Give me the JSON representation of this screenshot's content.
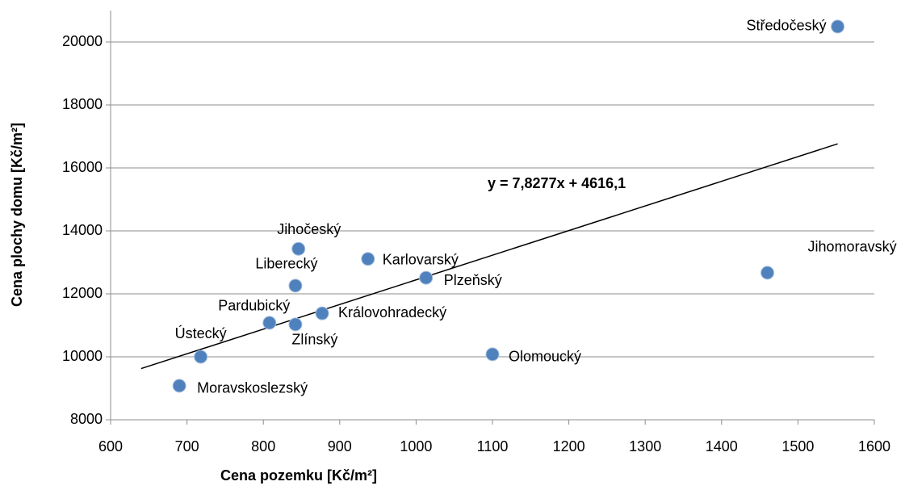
{
  "chart_data": {
    "type": "scatter",
    "x_label": "Cena pozemku [Kč/m²]",
    "y_label": "Cena plochy domu [Kč/m²]",
    "point_labels": [
      "Středočeský",
      "Jihomoravský",
      "Jihočeský",
      "Karlovarský",
      "Liberecký",
      "Plzeňský",
      "Královohradecký",
      "Pardubický",
      "Zlínský",
      "Ústecký",
      "Olomoucký",
      "Moravskoslezský"
    ],
    "x": [
      1552,
      1460,
      846,
      937,
      842,
      1013,
      877,
      808,
      842,
      718,
      1100,
      690
    ],
    "values": [
      20490,
      12670,
      13430,
      13110,
      12260,
      12510,
      11380,
      11080,
      11030,
      10000,
      10080,
      9080
    ],
    "color": "#4f81bd",
    "xlim": [
      600,
      1600
    ],
    "xticks": [
      600,
      700,
      800,
      900,
      1000,
      1100,
      1200,
      1300,
      1400,
      1500,
      1600
    ],
    "ylim": [
      8000,
      21000
    ],
    "yticks": [
      8000,
      10000,
      12000,
      14000,
      16000,
      18000,
      20000
    ],
    "grid": true,
    "trendline": {
      "label": "y = 7,8277x + 4616,1",
      "slope": 7.8277,
      "intercept": 4616.1,
      "x_range": [
        640,
        1552
      ]
    }
  }
}
